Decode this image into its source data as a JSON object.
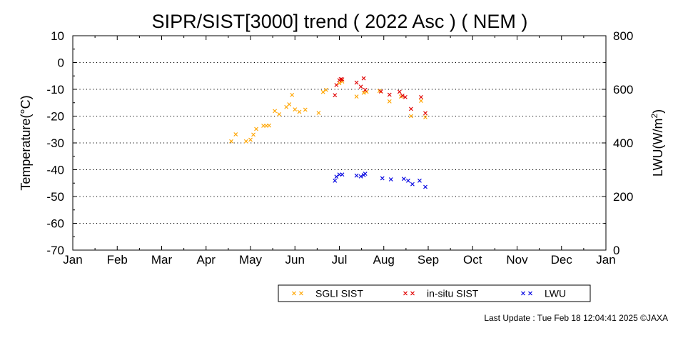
{
  "chart_data": {
    "type": "scatter",
    "title": "SIPR/SIST[3000] trend ( 2022 Asc ) ( NEM )",
    "ylabel_left": "Temperature(°C)",
    "ylabel_right_prefix": "LWU(W/m",
    "ylabel_right_sup": "2",
    "ylabel_right_suffix": ")",
    "x_ticks": [
      "Jan",
      "Feb",
      "Mar",
      "Apr",
      "May",
      "Jun",
      "Jul",
      "Aug",
      "Sep",
      "Oct",
      "Nov",
      "Dec",
      "Jan"
    ],
    "x_range_month_index": [
      0,
      12
    ],
    "y_left_ticks": [
      10,
      0,
      -10,
      -20,
      -30,
      -40,
      -50,
      -60,
      -70
    ],
    "y_left_range": [
      -70,
      10
    ],
    "y_right_ticks": [
      800,
      600,
      400,
      200,
      0
    ],
    "y_right_range": [
      0,
      800
    ],
    "grid": "horizontal dotted",
    "legend_placement": "bottom",
    "marker": "×",
    "series": [
      {
        "name": "SGLI SIST",
        "color": "#FFA500",
        "axis": "left",
        "points": [
          [
            "2022-04-18",
            -29.4
          ],
          [
            "2022-04-21",
            -26.8
          ],
          [
            "2022-04-28",
            -29.4
          ],
          [
            "2022-05-01",
            -28.8
          ],
          [
            "2022-05-03",
            -26.9
          ],
          [
            "2022-05-05",
            -24.8
          ],
          [
            "2022-05-10",
            -23.6
          ],
          [
            "2022-05-12",
            -23.6
          ],
          [
            "2022-05-14",
            -23.5
          ],
          [
            "2022-05-18",
            -18.1
          ],
          [
            "2022-05-21",
            -19.3
          ],
          [
            "2022-05-26",
            -16.6
          ],
          [
            "2022-05-28",
            -15.6
          ],
          [
            "2022-05-30",
            -12.1
          ],
          [
            "2022-06-01",
            -17.5
          ],
          [
            "2022-06-04",
            -18.4
          ],
          [
            "2022-06-08",
            -17.6
          ],
          [
            "2022-06-17",
            -18.8
          ],
          [
            "2022-06-20",
            -11.0
          ],
          [
            "2022-06-22",
            -10.2
          ],
          [
            "2022-07-01",
            -7.7
          ],
          [
            "2022-07-03",
            -7.1
          ],
          [
            "2022-07-13",
            -12.7
          ],
          [
            "2022-07-18",
            -11.3
          ],
          [
            "2022-07-20",
            -10.9
          ],
          [
            "2022-07-29",
            -10.6
          ],
          [
            "2022-08-05",
            -14.5
          ],
          [
            "2022-08-13",
            -12.7
          ],
          [
            "2022-08-20",
            -20.0
          ],
          [
            "2022-08-27",
            -14.3
          ],
          [
            "2022-08-30",
            -20.4
          ]
        ]
      },
      {
        "name": "in-situ SIST",
        "color": "#E00000",
        "axis": "left",
        "points": [
          [
            "2022-06-28",
            -12.2
          ],
          [
            "2022-06-29",
            -8.4
          ],
          [
            "2022-07-01",
            -6.6
          ],
          [
            "2022-07-02",
            -6.2
          ],
          [
            "2022-07-03",
            -6.3
          ],
          [
            "2022-07-13",
            -7.5
          ],
          [
            "2022-07-16",
            -9.0
          ],
          [
            "2022-07-18",
            -5.9
          ],
          [
            "2022-07-19",
            -10.2
          ],
          [
            "2022-07-30",
            -10.8
          ],
          [
            "2022-08-05",
            -12.0
          ],
          [
            "2022-08-12",
            -10.9
          ],
          [
            "2022-08-14",
            -12.4
          ],
          [
            "2022-08-16",
            -12.9
          ],
          [
            "2022-08-20",
            -17.3
          ],
          [
            "2022-08-27",
            -12.9
          ],
          [
            "2022-08-30",
            -18.9
          ]
        ]
      },
      {
        "name": "LWU",
        "color": "#0000E0",
        "axis": "right",
        "points": [
          [
            "2022-06-28",
            259
          ],
          [
            "2022-06-29",
            274
          ],
          [
            "2022-07-01",
            282
          ],
          [
            "2022-07-03",
            282
          ],
          [
            "2022-07-13",
            278
          ],
          [
            "2022-07-16",
            275
          ],
          [
            "2022-07-18",
            280
          ],
          [
            "2022-07-19",
            285
          ],
          [
            "2022-07-31",
            268
          ],
          [
            "2022-08-06",
            264
          ],
          [
            "2022-08-15",
            266
          ],
          [
            "2022-08-18",
            259
          ],
          [
            "2022-08-21",
            246
          ],
          [
            "2022-08-26",
            259
          ],
          [
            "2022-08-30",
            236
          ]
        ]
      }
    ]
  },
  "footer": {
    "last_update": "Last Update : Tue Feb 18 12:04:41 2025  ©JAXA"
  }
}
